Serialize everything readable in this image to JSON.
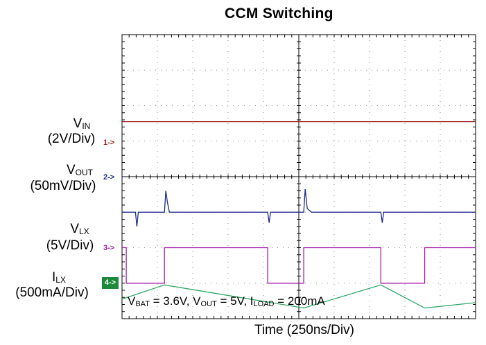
{
  "title": "CCM Switching",
  "xlabel": "Time (250ns/Div)",
  "channels": [
    {
      "id": 1,
      "name_main": "V",
      "name_sub": "IN",
      "scale": "(2V/Div)",
      "marker": "1->",
      "color": "#9b1c1c"
    },
    {
      "id": 2,
      "name_main": "V",
      "name_sub": "OUT",
      "scale": "(50mV/Div)",
      "marker": "2->",
      "color": "#1a2a8a"
    },
    {
      "id": 3,
      "name_main": "V",
      "name_sub": "LX",
      "scale": "(5V/Div)",
      "marker": "3->",
      "color": "#a11ea8"
    },
    {
      "id": 4,
      "name_main": "I",
      "name_sub": "LX",
      "scale": "(500mA/Div)",
      "marker": "4->",
      "color": "#2ea566"
    }
  ],
  "conditions": {
    "p1": "V",
    "s1": "BAT",
    "t1": " = 3.6V, V",
    "s2": "OUT",
    "t2": " = 5V, I",
    "s3": "LOAD",
    "t3": " = 200mA"
  },
  "chart_data": {
    "type": "line",
    "title": "CCM Switching",
    "xlabel": "Time (250ns/Div)",
    "ylabel": "",
    "grid": true,
    "x_divisions": 10,
    "y_divisions": 8,
    "time_per_div_ns": 250,
    "xlim_ns": [
      0,
      2500
    ],
    "series": [
      {
        "name": "VIN",
        "unit": "V",
        "scale_per_div": 2,
        "x_ns": [
          0,
          2500
        ],
        "y_div": [
          5.55,
          5.55
        ]
      },
      {
        "name": "VOUT",
        "unit": "mV",
        "scale_per_div": 50,
        "x_ns": [
          0,
          95,
          105,
          115,
          155,
          300,
          310,
          320,
          335,
          420,
          720,
          1030,
          1040,
          1050,
          1065,
          1150,
          1285,
          1295,
          1310,
          1340,
          1530,
          1830,
          1840,
          1850,
          1865,
          2140,
          2500
        ],
        "y_div": [
          3.0,
          3.0,
          2.6,
          3.0,
          3.0,
          3.0,
          3.6,
          3.3,
          3.0,
          3.0,
          3.0,
          3.0,
          2.7,
          3.0,
          3.0,
          3.0,
          3.0,
          3.65,
          3.1,
          3.0,
          3.0,
          3.0,
          2.7,
          3.0,
          3.0,
          3.0,
          3.0
        ]
      },
      {
        "name": "VLX",
        "unit": "V",
        "scale_per_div": 5,
        "x_ns": [
          0,
          30,
          30,
          300,
          300,
          1030,
          1030,
          1285,
          1285,
          1830,
          1830,
          2140,
          2140,
          2500
        ],
        "y_div": [
          2.0,
          2.0,
          1.0,
          1.0,
          2.0,
          2.0,
          1.0,
          1.0,
          2.0,
          2.0,
          1.0,
          1.0,
          2.0,
          2.0
        ]
      },
      {
        "name": "ILX",
        "unit": "mA",
        "scale_per_div": 500,
        "x_ns": [
          0,
          300,
          1285,
          1830,
          2140,
          2500
        ],
        "y_div": [
          0.55,
          0.95,
          0.3,
          0.95,
          0.3,
          0.45
        ]
      }
    ]
  }
}
